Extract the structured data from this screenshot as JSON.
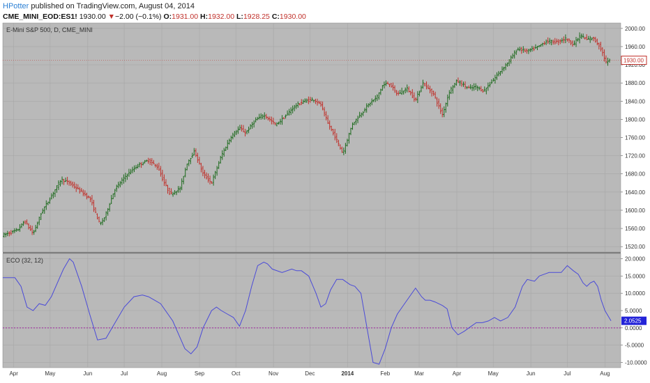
{
  "header": {
    "user": "HPotter",
    "published_text": " published on TradingView.com, August 04, 2014",
    "symbol": "CME_MINI_EOD:ES1!",
    "last": "1930.00",
    "arrow": "▼",
    "change": "−2.00 (−0.1%)",
    "o_label": "O:",
    "o_val": "1931.00",
    "h_label": "H:",
    "h_val": "1932.00",
    "l_label": "L:",
    "l_val": "1928.25",
    "c_label": "C:",
    "c_val": "1930.00"
  },
  "colors": {
    "up": "#1e6b1e",
    "down": "#c0302a",
    "line": "#4a4ad8",
    "zero": "#a020a0",
    "pane_bg": "#b9b9b9",
    "grid": "#a7a7a7"
  },
  "chart_data": [
    {
      "type": "ohlc",
      "title": "E-Mini S&P 500, D, CME_MINI",
      "y_ticks": [
        1520,
        1560,
        1600,
        1640,
        1680,
        1720,
        1760,
        1800,
        1840,
        1880,
        1920,
        1960,
        2000
      ],
      "ylim": [
        1508,
        2012
      ],
      "last_price_label": "1930.00",
      "x_ticks": [
        "Apr",
        "May",
        "Jun",
        "Jul",
        "Aug",
        "Sep",
        "Oct",
        "Nov",
        "Dec",
        "2014",
        "Feb",
        "Mar",
        "Apr",
        "May",
        "Jun",
        "Jul",
        "Aug"
      ],
      "x_tick_days": [
        9,
        39,
        70,
        100,
        131,
        162,
        192,
        223,
        253,
        284,
        315,
        343,
        374,
        404,
        435,
        465,
        496
      ],
      "x_range_days": [
        0,
        509
      ],
      "price_path": {
        "days": [
          0,
          12,
          18,
          25,
          32,
          40,
          48,
          55,
          65,
          72,
          80,
          84,
          92,
          102,
          112,
          120,
          128,
          133,
          138,
          146,
          152,
          158,
          165,
          172,
          180,
          188,
          195,
          200,
          208,
          215,
          225,
          232,
          240,
          248,
          256,
          262,
          268,
          274,
          280,
          288,
          295,
          302,
          308,
          313,
          318,
          325,
          333,
          340,
          346,
          355,
          362,
          368,
          374,
          378,
          384,
          390,
          396,
          402,
          408,
          416,
          424,
          432,
          440,
          448,
          456,
          464,
          470,
          476,
          481,
          486,
          492,
          497,
          501
        ],
        "values": [
          1545,
          1556,
          1576,
          1548,
          1596,
          1631,
          1668,
          1660,
          1640,
          1625,
          1568,
          1585,
          1645,
          1678,
          1700,
          1710,
          1694,
          1660,
          1635,
          1648,
          1705,
          1730,
          1680,
          1660,
          1720,
          1762,
          1781,
          1770,
          1798,
          1810,
          1788,
          1805,
          1828,
          1840,
          1844,
          1832,
          1790,
          1760,
          1725,
          1790,
          1812,
          1835,
          1848,
          1875,
          1880,
          1855,
          1868,
          1842,
          1880,
          1855,
          1810,
          1862,
          1885,
          1878,
          1868,
          1872,
          1862,
          1880,
          1900,
          1925,
          1955,
          1950,
          1958,
          1972,
          1970,
          1978,
          1965,
          1985,
          1975,
          1980,
          1960,
          1925,
          1930
        ]
      }
    },
    {
      "type": "line",
      "title": "ECO (32, 12)",
      "y_ticks": [
        -10,
        -5,
        0,
        5,
        10,
        15,
        20
      ],
      "y_tick_labels": [
        "-10.0000",
        "-5.0000",
        "0.0000",
        "5.0000",
        "10.0000",
        "15.0000",
        "20.0000"
      ],
      "ylim": [
        -11.5,
        21.5
      ],
      "last_value_label": "2.0525",
      "series": [
        {
          "days": [
            0,
            10,
            15,
            20,
            25,
            30,
            35,
            40,
            45,
            50,
            55,
            58,
            65,
            72,
            78,
            85,
            90,
            100,
            108,
            115,
            120,
            125,
            130,
            140,
            145,
            150,
            155,
            160,
            165,
            172,
            176,
            180,
            185,
            190,
            195,
            200,
            205,
            210,
            215,
            218,
            222,
            230,
            238,
            242,
            246,
            252,
            258,
            262,
            266,
            270,
            275,
            280,
            286,
            290,
            295,
            300,
            305,
            310,
            315,
            320,
            325,
            330,
            335,
            340,
            345,
            348,
            352,
            356,
            362,
            366,
            370,
            375,
            380,
            384,
            390,
            395,
            400,
            405,
            410,
            416,
            422,
            428,
            432,
            438,
            442,
            446,
            450,
            455,
            460,
            465,
            470,
            474,
            478,
            481,
            484,
            487,
            490,
            493,
            496,
            501
          ],
          "values": [
            14.5,
            14.5,
            12,
            6,
            5,
            7,
            6.5,
            9,
            13,
            17,
            20,
            19,
            12,
            3.5,
            -3.5,
            -3,
            0,
            6,
            9,
            9.5,
            9,
            8,
            7,
            2,
            -2,
            -6,
            -7.5,
            -5.5,
            0,
            5,
            6,
            5,
            4,
            3,
            0.5,
            5,
            12,
            18,
            19,
            18.5,
            17,
            16,
            17,
            16.5,
            16.5,
            15,
            10,
            6,
            7,
            11,
            14,
            14,
            12.5,
            12,
            10,
            0,
            -10,
            -10.5,
            -6,
            0,
            4,
            6.5,
            9,
            11.5,
            9,
            8,
            8,
            7.5,
            6.5,
            5.5,
            0,
            -2,
            -1,
            0,
            1.5,
            1.5,
            2,
            3,
            2,
            3,
            6,
            12,
            14,
            13.5,
            15,
            15.5,
            16,
            16,
            16,
            18,
            16.5,
            15.5,
            13,
            12,
            13,
            13.5,
            12,
            8,
            5,
            2.05
          ]
        }
      ],
      "zero_line": 0
    }
  ]
}
